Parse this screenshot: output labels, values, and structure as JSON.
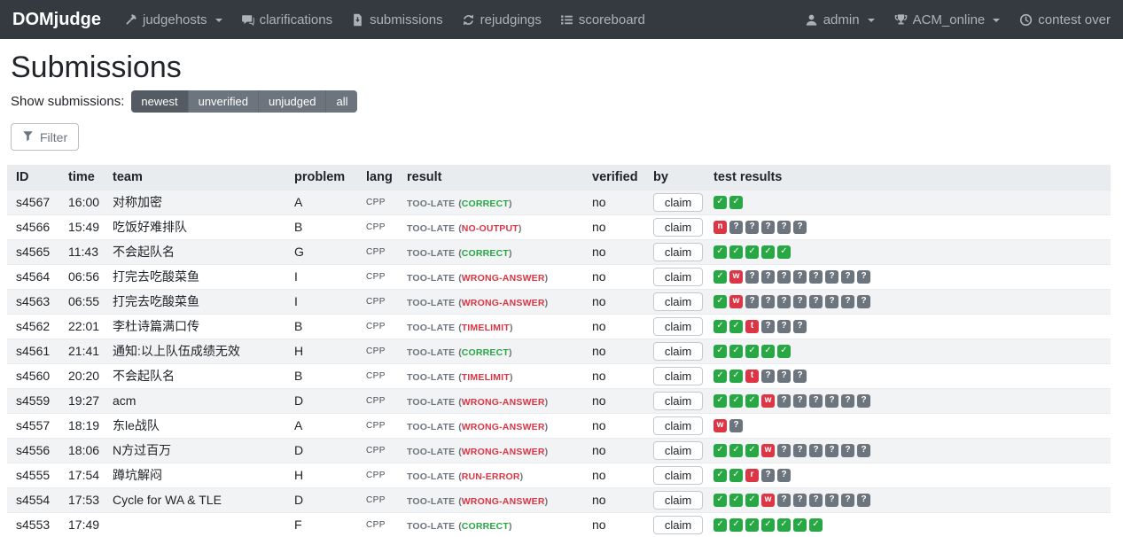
{
  "navbar": {
    "brand": "DOMjudge",
    "items": [
      {
        "label": "judgehosts",
        "icon": "gavel-icon",
        "caret": true
      },
      {
        "label": "clarifications",
        "icon": "comments-icon",
        "caret": false
      },
      {
        "label": "submissions",
        "icon": "file-download-icon",
        "caret": false
      },
      {
        "label": "rejudgings",
        "icon": "sync-icon",
        "caret": false
      },
      {
        "label": "scoreboard",
        "icon": "list-icon",
        "caret": false
      }
    ],
    "right_items": [
      {
        "label": "admin",
        "icon": "user-icon",
        "caret": true
      },
      {
        "label": "ACM_online",
        "icon": "trophy-icon",
        "caret": true
      },
      {
        "label": "contest over",
        "icon": "clock-icon",
        "caret": false
      }
    ]
  },
  "page": {
    "title": "Submissions",
    "show_submissions_label": "Show submissions:",
    "view_options": [
      "newest",
      "unverified",
      "unjudged",
      "all"
    ],
    "active_view": "newest",
    "filter_button_label": "Filter"
  },
  "table": {
    "headers": [
      "ID",
      "time",
      "team",
      "problem",
      "lang",
      "result",
      "verified",
      "by",
      "test results"
    ],
    "claim_button_label": "claim",
    "rows": [
      {
        "id": "s4567",
        "time": "16:00",
        "team": "对称加密",
        "problem": "A",
        "lang": "CPP",
        "result_prefix": "TOO-LATE",
        "verdict": "CORRECT",
        "verdict_ok": true,
        "verified": "no",
        "tests": "oo"
      },
      {
        "id": "s4566",
        "time": "15:49",
        "team": "吃饭好难排队",
        "problem": "B",
        "lang": "CPP",
        "result_prefix": "TOO-LATE",
        "verdict": "NO-OUTPUT",
        "verdict_ok": false,
        "verified": "no",
        "tests": "n?????"
      },
      {
        "id": "s4565",
        "time": "11:43",
        "team": "不会起队名",
        "problem": "G",
        "lang": "CPP",
        "result_prefix": "TOO-LATE",
        "verdict": "CORRECT",
        "verdict_ok": true,
        "verified": "no",
        "tests": "ooooo"
      },
      {
        "id": "s4564",
        "time": "06:56",
        "team": "打完去吃酸菜鱼",
        "problem": "I",
        "lang": "CPP",
        "result_prefix": "TOO-LATE",
        "verdict": "WRONG-ANSWER",
        "verdict_ok": false,
        "verified": "no",
        "tests": "ow????????"
      },
      {
        "id": "s4563",
        "time": "06:55",
        "team": "打完去吃酸菜鱼",
        "problem": "I",
        "lang": "CPP",
        "result_prefix": "TOO-LATE",
        "verdict": "WRONG-ANSWER",
        "verdict_ok": false,
        "verified": "no",
        "tests": "ow????????"
      },
      {
        "id": "s4562",
        "time": "22:01",
        "team": "李杜诗篇满口传",
        "problem": "B",
        "lang": "CPP",
        "result_prefix": "TOO-LATE",
        "verdict": "TIMELIMIT",
        "verdict_ok": false,
        "verified": "no",
        "tests": "oot???"
      },
      {
        "id": "s4561",
        "time": "21:41",
        "team": "通知:以上队伍成绩无效",
        "problem": "H",
        "lang": "CPP",
        "result_prefix": "TOO-LATE",
        "verdict": "CORRECT",
        "verdict_ok": true,
        "verified": "no",
        "tests": "ooooo"
      },
      {
        "id": "s4560",
        "time": "20:20",
        "team": "不会起队名",
        "problem": "B",
        "lang": "CPP",
        "result_prefix": "TOO-LATE",
        "verdict": "TIMELIMIT",
        "verdict_ok": false,
        "verified": "no",
        "tests": "oot???"
      },
      {
        "id": "s4559",
        "time": "19:27",
        "team": "acm",
        "problem": "D",
        "lang": "CPP",
        "result_prefix": "TOO-LATE",
        "verdict": "WRONG-ANSWER",
        "verdict_ok": false,
        "verified": "no",
        "tests": "ooow??????"
      },
      {
        "id": "s4557",
        "time": "18:19",
        "team": "东le战队",
        "problem": "A",
        "lang": "CPP",
        "result_prefix": "TOO-LATE",
        "verdict": "WRONG-ANSWER",
        "verdict_ok": false,
        "verified": "no",
        "tests": "w?"
      },
      {
        "id": "s4556",
        "time": "18:06",
        "team": "N方过百万",
        "problem": "D",
        "lang": "CPP",
        "result_prefix": "TOO-LATE",
        "verdict": "WRONG-ANSWER",
        "verdict_ok": false,
        "verified": "no",
        "tests": "ooow??????"
      },
      {
        "id": "s4555",
        "time": "17:54",
        "team": "蹲坑解闷",
        "problem": "H",
        "lang": "CPP",
        "result_prefix": "TOO-LATE",
        "verdict": "RUN-ERROR",
        "verdict_ok": false,
        "verified": "no",
        "tests": "oor??"
      },
      {
        "id": "s4554",
        "time": "17:53",
        "team": "Cycle for WA & TLE",
        "problem": "D",
        "lang": "CPP",
        "result_prefix": "TOO-LATE",
        "verdict": "WRONG-ANSWER",
        "verdict_ok": false,
        "verified": "no",
        "tests": "ooow??????"
      },
      {
        "id": "s4553",
        "time": "17:49",
        "team": "",
        "problem": "F",
        "lang": "CPP",
        "result_prefix": "TOO-LATE",
        "verdict": "CORRECT",
        "verdict_ok": true,
        "verified": "no",
        "tests": "ooooooo"
      }
    ]
  },
  "colors": {
    "navbar_bg": "#343a40",
    "correct_green": "#28a745",
    "incorrect_red": "#dc3545",
    "pending_gray": "#6c757d"
  }
}
